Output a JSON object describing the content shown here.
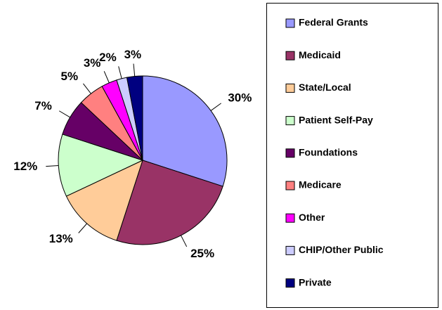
{
  "chart_data": {
    "type": "pie",
    "categories": [
      "Federal Grants",
      "Medicaid",
      "State/Local",
      "Patient Self-Pay",
      "Foundations",
      "Medicare",
      "Other",
      "CHIP/Other Public",
      "Private"
    ],
    "values": [
      30,
      25,
      13,
      12,
      7,
      5,
      3,
      2,
      3
    ],
    "value_labels": [
      "30%",
      "25%",
      "13%",
      "12%",
      "7%",
      "5%",
      "3%",
      "2%",
      "3%"
    ],
    "colors": [
      "#9999ff",
      "#993366",
      "#ffcc99",
      "#ccffcc",
      "#660066",
      "#ff8080",
      "#ff00ff",
      "#ccccff",
      "#000080"
    ],
    "legend": "right"
  }
}
